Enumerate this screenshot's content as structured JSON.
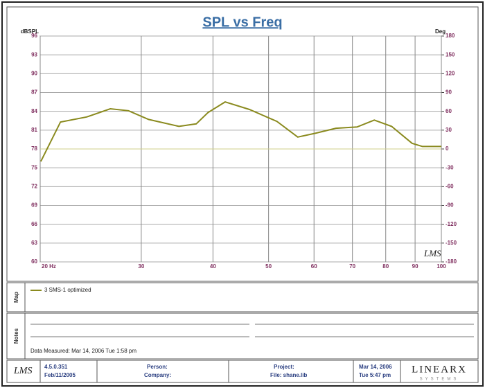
{
  "chart_data": {
    "type": "line",
    "title": "SPL vs Freq",
    "ylabel": "dBSPL",
    "y2label": "Deg",
    "log_x": true,
    "grid": true,
    "xlim": [
      20,
      100
    ],
    "xticks": [
      {
        "value": 20,
        "label": "20 Hz"
      },
      30,
      40,
      50,
      60,
      70,
      80,
      90,
      100
    ],
    "ylim": [
      60,
      96
    ],
    "yticks": [
      60,
      63,
      66,
      69,
      72,
      75,
      78,
      81,
      84,
      87,
      90,
      93,
      96
    ],
    "y2lim": [
      -180,
      180
    ],
    "y2ticks": [
      -180,
      -150,
      -120,
      -90,
      -60,
      -30,
      0,
      30,
      60,
      90,
      120,
      150,
      180
    ],
    "series": [
      {
        "name": "3  SMS-1 optimized",
        "color": "#8a8a1e",
        "x": [
          20.05,
          21.7,
          24.1,
          26.5,
          28.5,
          30.9,
          34.9,
          37.4,
          39.2,
          42.0,
          46.3,
          51.7,
          56.2,
          60.3,
          65.5,
          71.3,
          76.4,
          81.9,
          88.9,
          92.7,
          100
        ],
        "values": [
          76.0,
          82.3,
          83.1,
          84.4,
          84.1,
          82.7,
          81.6,
          82.0,
          83.8,
          85.5,
          84.3,
          82.4,
          79.9,
          80.5,
          81.3,
          81.5,
          82.6,
          81.6,
          78.9,
          78.4,
          78.4
        ]
      },
      {
        "color": "#cfcf8a",
        "axis": "y2",
        "x": [
          20,
          100
        ],
        "values": [
          0,
          0
        ]
      }
    ]
  },
  "ui": {
    "watermark": "LMS",
    "map_label": "Map",
    "notes_label": "Notes",
    "notes_text": "Data Measured: Mar 14, 2006  Tue 1:58 pm",
    "footer": {
      "logo": "LMS",
      "version": "4.5.0.351",
      "build_date": "Feb/11/2005",
      "person": "Person:",
      "company": "Company:",
      "project": "Project:",
      "file": "File: shane.lib",
      "date": "Mar 14, 2006",
      "time": "Tue 5:47 pm",
      "brand": "LINEARX",
      "brand_sub": "SYSTEMS"
    }
  }
}
